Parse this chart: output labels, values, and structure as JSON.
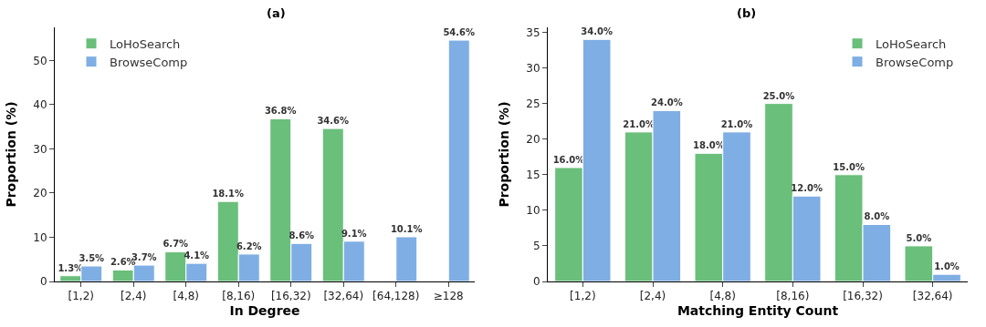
{
  "chart_data": [
    {
      "type": "bar",
      "title": "(a)",
      "xlabel": "In Degree",
      "ylabel": "Proportion (%)",
      "categories": [
        "[1,2)",
        "[2,4)",
        "[4,8)",
        "[8,16)",
        "[16,32)",
        "[32,64)",
        "[64,128)",
        "≥128"
      ],
      "series": [
        {
          "name": "LoHoSearch",
          "color": "#6abf7b",
          "values": [
            1.3,
            2.6,
            6.7,
            18.1,
            36.8,
            34.6,
            null,
            null
          ],
          "value_labels": [
            "1.3%",
            "2.6%",
            "6.7%",
            "18.1%",
            "36.8%",
            "34.6%",
            null,
            null
          ]
        },
        {
          "name": "BrowseComp",
          "color": "#7eaee3",
          "values": [
            3.5,
            3.7,
            4.1,
            6.2,
            8.6,
            9.1,
            10.1,
            54.6
          ],
          "value_labels": [
            "3.5%",
            "3.7%",
            "4.1%",
            "6.2%",
            "8.6%",
            "9.1%",
            "10.1%",
            "54.6%"
          ]
        }
      ],
      "ylim": [
        0,
        57.5
      ],
      "yticks": [
        0,
        10,
        20,
        30,
        40,
        50
      ],
      "legend": "top left"
    },
    {
      "type": "bar",
      "title": "(b)",
      "xlabel": "Matching Entity Count",
      "ylabel": "Proportion (%)",
      "categories": [
        "[1,2)",
        "[2,4)",
        "[4,8)",
        "[8,16)",
        "[16,32)",
        "[32,64)"
      ],
      "series": [
        {
          "name": "LoHoSearch",
          "color": "#6abf7b",
          "values": [
            16,
            21,
            18,
            25,
            15,
            5
          ],
          "value_labels": [
            "16.0%",
            "21.0%",
            "18.0%",
            "25.0%",
            "15.0%",
            "5.0%"
          ]
        },
        {
          "name": "BrowseComp",
          "color": "#7eaee3",
          "values": [
            34,
            24,
            21,
            12,
            8,
            1
          ],
          "value_labels": [
            "34.0%",
            "24.0%",
            "21.0%",
            "12.0%",
            "8.0%",
            "1.0%"
          ]
        }
      ],
      "ylim": [
        0,
        35.7
      ],
      "yticks": [
        0,
        5,
        10,
        15,
        20,
        25,
        30,
        35
      ],
      "legend": "top right"
    }
  ]
}
